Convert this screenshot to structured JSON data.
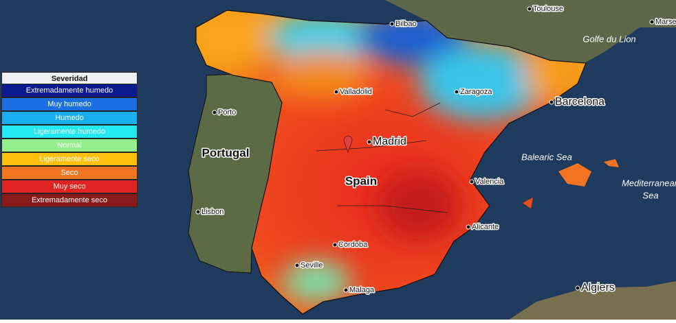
{
  "legend": {
    "title": "Severidad",
    "items": [
      {
        "label": "Extremadamente humedo",
        "color": "#0b1a8e"
      },
      {
        "label": "Muy humedo",
        "color": "#1b6fe0"
      },
      {
        "label": "Humedo",
        "color": "#18aef0"
      },
      {
        "label": "Ligeramente humedo",
        "color": "#22eaf2"
      },
      {
        "label": "Normal",
        "color": "#94ee8e"
      },
      {
        "label": "Ligeramente seco",
        "color": "#fcc010"
      },
      {
        "label": "Seco",
        "color": "#f07422"
      },
      {
        "label": "Muy seco",
        "color": "#e02424"
      },
      {
        "label": "Extremadamente seco",
        "color": "#8a1a1a"
      }
    ]
  },
  "cities": [
    "Toulouse",
    "Marse",
    "Bilbao",
    "Valladolid",
    "Zaragoza",
    "Barcelona",
    "Porto",
    "Madrid",
    "Valencia",
    "Lisbon",
    "Alicante",
    "Cordoba",
    "Seville",
    "Malaga",
    "Algiers"
  ],
  "countries": [
    "Portugal",
    "Spain"
  ],
  "seas": [
    "Golfe du Lion",
    "Balearic Sea",
    "Mediterranean",
    "Sea"
  ]
}
